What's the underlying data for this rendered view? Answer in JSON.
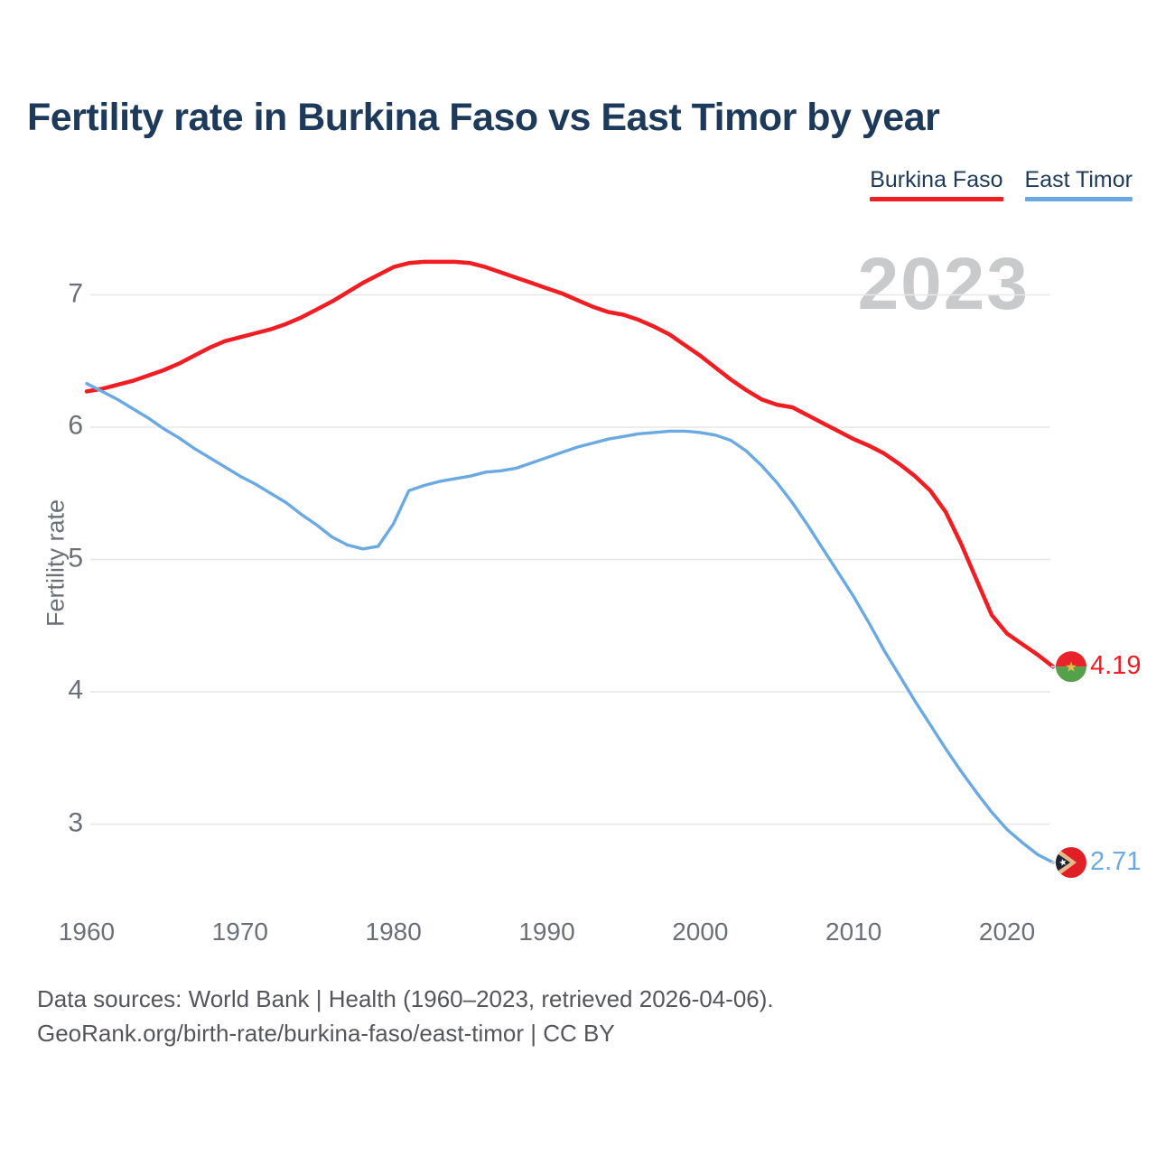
{
  "title": "Fertility rate in Burkina Faso vs East Timor by year",
  "watermark": "2023",
  "legend": {
    "items": [
      {
        "label": "Burkina Faso",
        "color": "#f01e23"
      },
      {
        "label": "East Timor",
        "color": "#6aa9e2"
      }
    ]
  },
  "endpoints": {
    "burkina_faso": {
      "label": "4.19",
      "flag": "burkina-faso-flag",
      "flag_colors": {
        "top": "#e8232a",
        "bottom": "#55a04a",
        "star": "#edc04f"
      }
    },
    "east_timor": {
      "label": "2.71",
      "flag": "east-timor-flag",
      "flag_colors": {
        "field": "#e01f26",
        "chevron": "#e6b98c",
        "triangle": "#1b2430",
        "star": "#ffffff"
      }
    }
  },
  "footer": {
    "line1": "Data sources: World Bank | Health (1960–2023, retrieved 2026-04-06).",
    "line2": "GeoRank.org/birth-rate/burkina-faso/east-timor | CC BY"
  },
  "chart_data": {
    "type": "line",
    "title": "Fertility rate in Burkina Faso vs East Timor by year",
    "xlabel": "",
    "ylabel": "Fertility rate",
    "x_range": [
      1960,
      2023
    ],
    "ylim": [
      2.5,
      7.5
    ],
    "y_ticks": [
      7,
      6,
      5,
      4,
      3
    ],
    "x_ticks": [
      1960,
      1970,
      1980,
      1990,
      2000,
      2010,
      2020
    ],
    "grid": "horizontal",
    "legend_position": "top-right",
    "annotation_year": "2023",
    "years": [
      1960,
      1961,
      1962,
      1963,
      1964,
      1965,
      1966,
      1967,
      1968,
      1969,
      1970,
      1971,
      1972,
      1973,
      1974,
      1975,
      1976,
      1977,
      1978,
      1979,
      1980,
      1981,
      1982,
      1983,
      1984,
      1985,
      1986,
      1987,
      1988,
      1989,
      1990,
      1991,
      1992,
      1993,
      1994,
      1995,
      1996,
      1997,
      1998,
      1999,
      2000,
      2001,
      2002,
      2003,
      2004,
      2005,
      2006,
      2007,
      2008,
      2009,
      2010,
      2011,
      2012,
      2013,
      2014,
      2015,
      2016,
      2017,
      2018,
      2019,
      2020,
      2021,
      2022,
      2023
    ],
    "series": [
      {
        "name": "Burkina Faso",
        "color": "#f01e23",
        "final_value": 4.19,
        "end_label": "4.19",
        "values": [
          6.27,
          6.29,
          6.32,
          6.35,
          6.39,
          6.43,
          6.48,
          6.54,
          6.6,
          6.65,
          6.68,
          6.71,
          6.74,
          6.78,
          6.83,
          6.89,
          6.95,
          7.02,
          7.09,
          7.15,
          7.21,
          7.24,
          7.25,
          7.25,
          7.25,
          7.24,
          7.21,
          7.17,
          7.13,
          7.09,
          7.05,
          7.01,
          6.96,
          6.91,
          6.87,
          6.85,
          6.81,
          6.76,
          6.7,
          6.62,
          6.54,
          6.45,
          6.36,
          6.28,
          6.21,
          6.17,
          6.15,
          6.09,
          6.03,
          5.97,
          5.91,
          5.86,
          5.8,
          5.72,
          5.63,
          5.52,
          5.36,
          5.12,
          4.85,
          4.58,
          4.44,
          4.36,
          4.28,
          4.19
        ]
      },
      {
        "name": "East Timor",
        "color": "#6aa9e2",
        "final_value": 2.71,
        "end_label": "2.71",
        "values": [
          6.33,
          6.27,
          6.21,
          6.14,
          6.07,
          5.99,
          5.92,
          5.84,
          5.77,
          5.7,
          5.63,
          5.57,
          5.5,
          5.43,
          5.34,
          5.26,
          5.17,
          5.11,
          5.08,
          5.1,
          5.27,
          5.52,
          5.56,
          5.59,
          5.61,
          5.63,
          5.66,
          5.67,
          5.69,
          5.73,
          5.77,
          5.81,
          5.85,
          5.88,
          5.91,
          5.93,
          5.95,
          5.96,
          5.97,
          5.97,
          5.96,
          5.94,
          5.9,
          5.82,
          5.71,
          5.58,
          5.43,
          5.26,
          5.08,
          4.9,
          4.72,
          4.52,
          4.31,
          4.12,
          3.93,
          3.75,
          3.57,
          3.4,
          3.24,
          3.09,
          2.96,
          2.86,
          2.77,
          2.71
        ]
      }
    ]
  }
}
